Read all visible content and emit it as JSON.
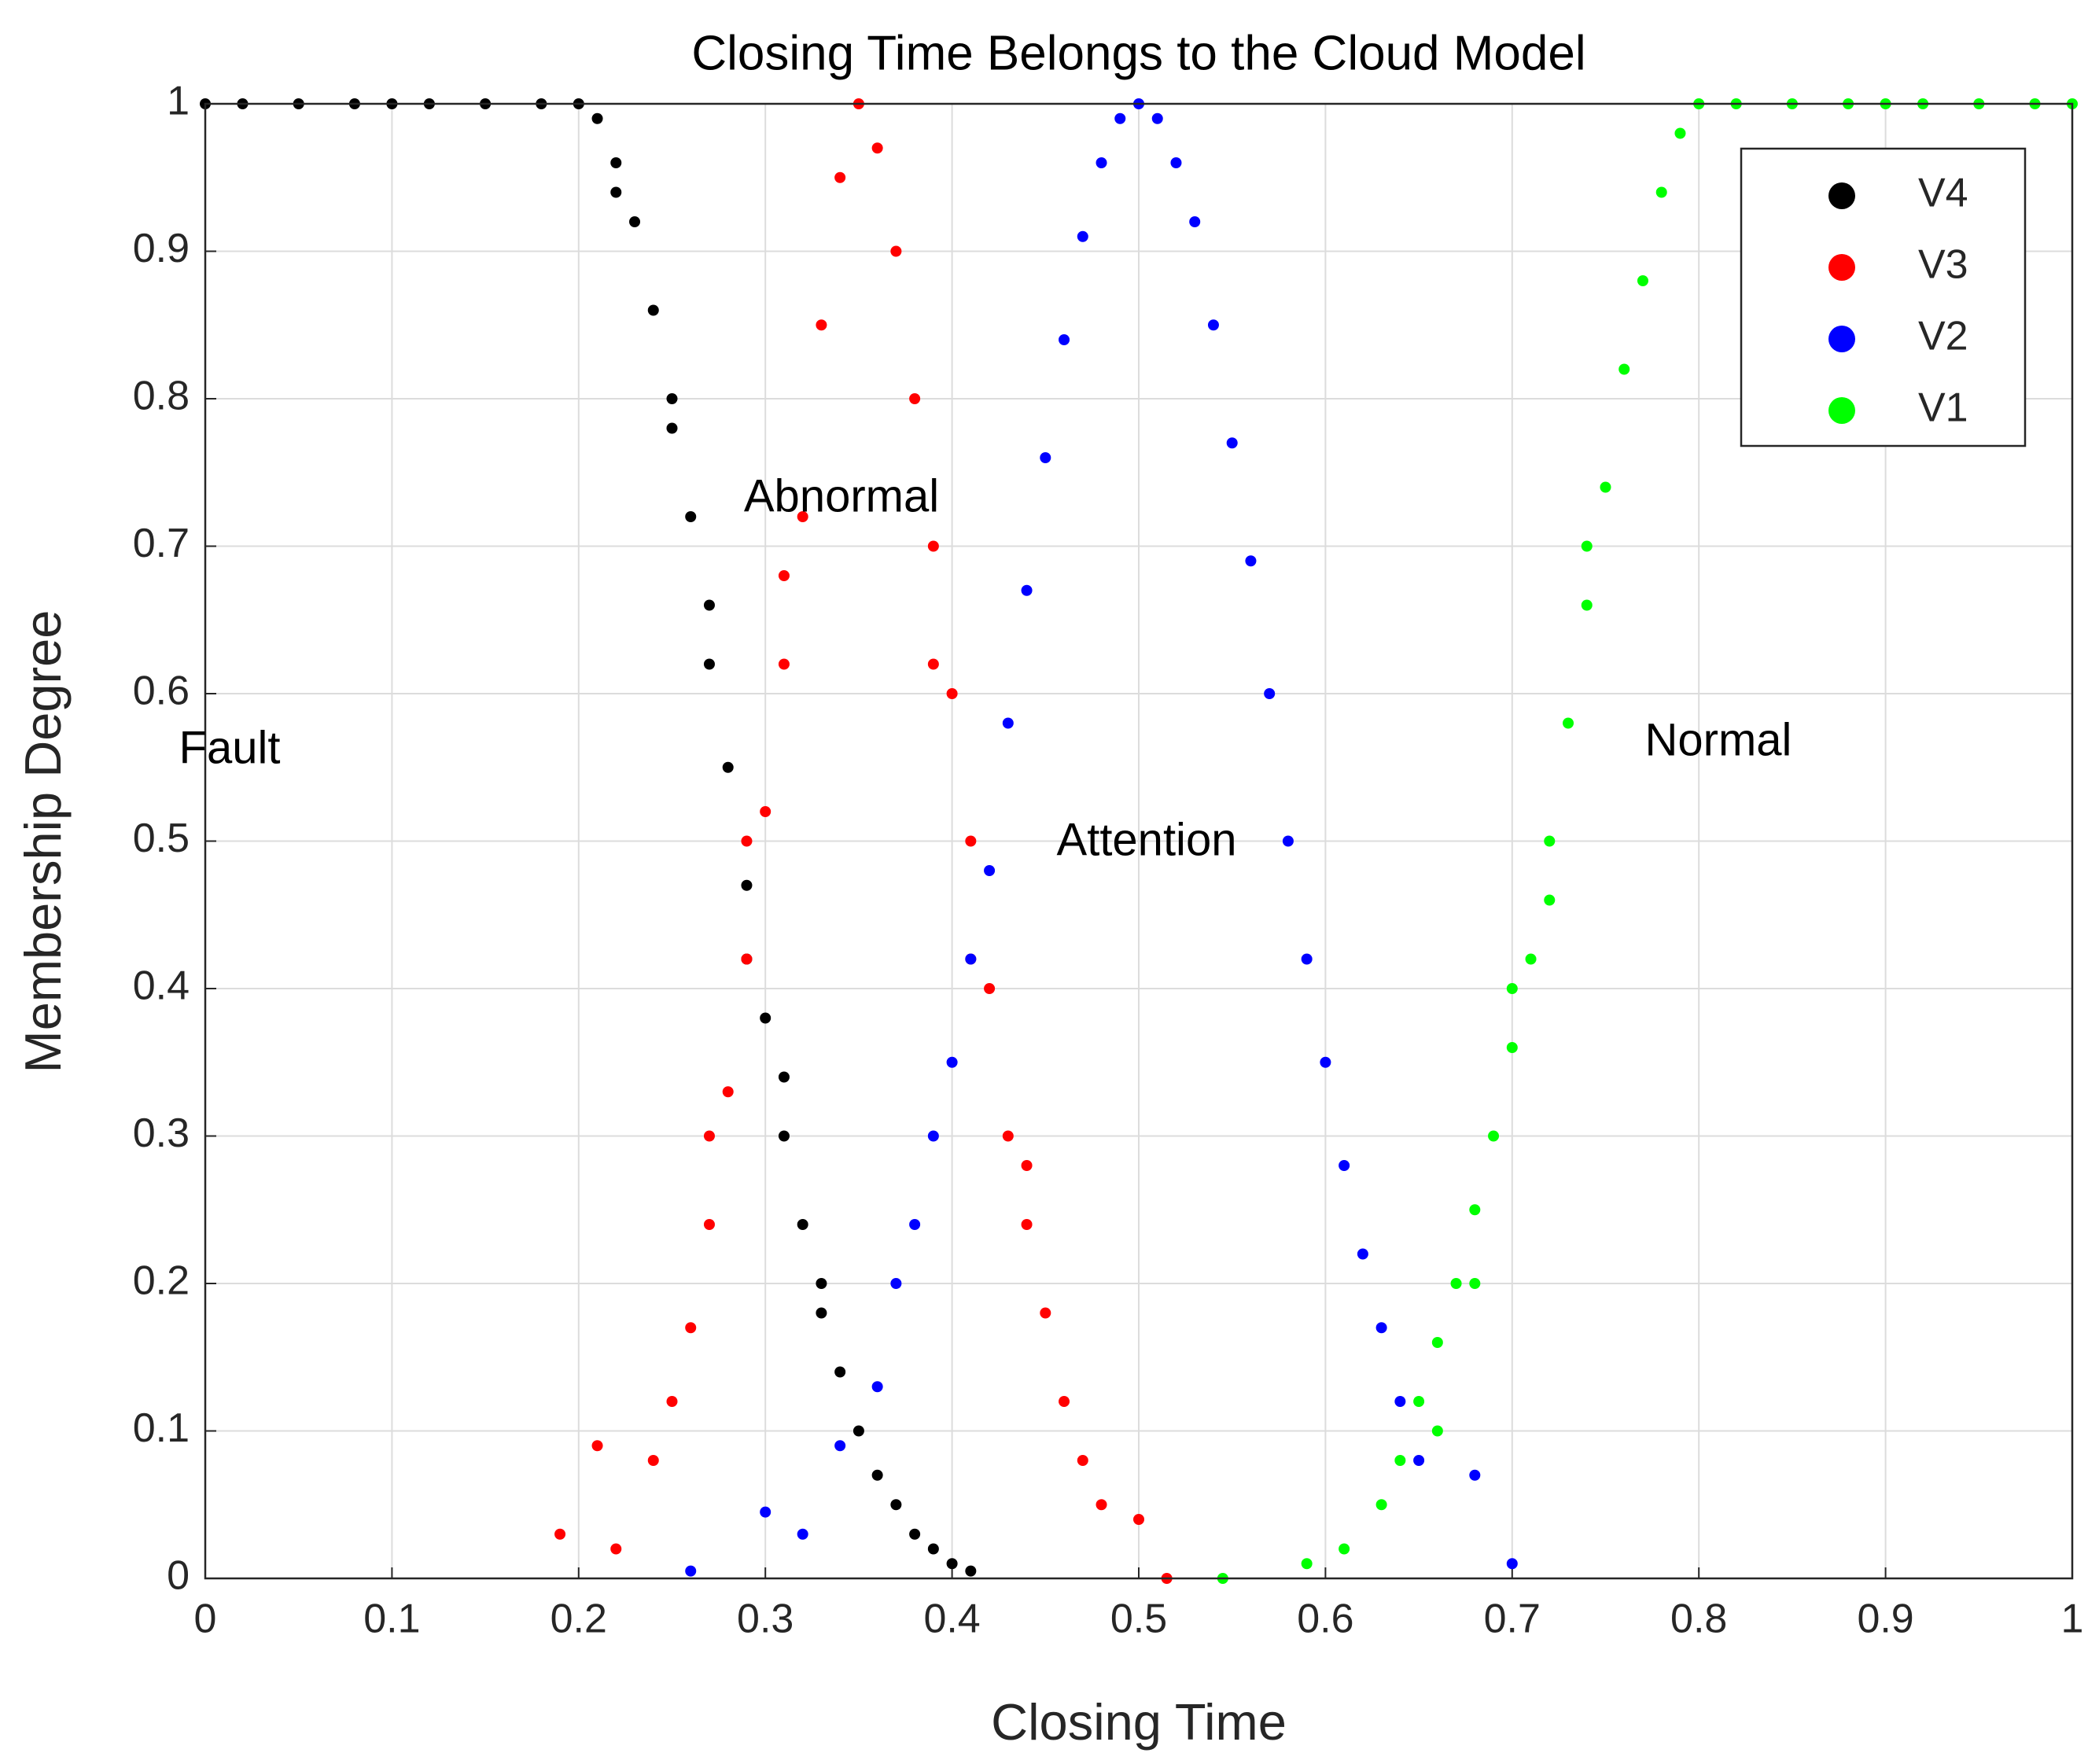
{
  "chart_data": {
    "type": "scatter",
    "title": "Closing Time Belongs to the Cloud Model",
    "xlabel": "Closing Time",
    "ylabel": "Membership Degree",
    "xlim": [
      0,
      1
    ],
    "ylim": [
      0,
      1
    ],
    "xticks": [
      0,
      0.1,
      0.2,
      0.3,
      0.4,
      0.5,
      0.6,
      0.7,
      0.8,
      0.9,
      1
    ],
    "yticks": [
      0,
      0.1,
      0.2,
      0.3,
      0.4,
      0.5,
      0.6,
      0.7,
      0.8,
      0.9,
      1
    ],
    "grid": true,
    "legend": "upper right",
    "annotations": [
      "Fault",
      "Abnormal",
      "Attention",
      "Normal"
    ],
    "series": [
      {
        "name": "V4",
        "color": "#000000",
        "x": [
          0,
          0.02,
          0.05,
          0.08,
          0.1,
          0.12,
          0.15,
          0.18,
          0.2,
          0.21,
          0.22,
          0.23,
          0.24,
          0.25,
          0.26,
          0.27,
          0.28,
          0.29,
          0.3,
          0.31,
          0.32,
          0.33,
          0.34,
          0.35,
          0.36,
          0.37,
          0.38,
          0.39,
          0.4,
          0.41,
          0.22,
          0.25,
          0.27,
          0.29,
          0.31,
          0.33
        ],
        "values": [
          1,
          1,
          1,
          1,
          1,
          1,
          1,
          1,
          1,
          0.99,
          0.96,
          0.92,
          0.86,
          0.8,
          0.72,
          0.66,
          0.55,
          0.47,
          0.38,
          0.3,
          0.24,
          0.18,
          0.14,
          0.1,
          0.07,
          0.05,
          0.03,
          0.02,
          0.01,
          0.005,
          0.94,
          0.78,
          0.62,
          0.42,
          0.34,
          0.2
        ]
      },
      {
        "name": "V3",
        "color": "#ff0000",
        "x": [
          0.19,
          0.21,
          0.22,
          0.24,
          0.25,
          0.26,
          0.27,
          0.28,
          0.29,
          0.3,
          0.31,
          0.32,
          0.33,
          0.34,
          0.35,
          0.36,
          0.37,
          0.38,
          0.39,
          0.4,
          0.41,
          0.42,
          0.43,
          0.44,
          0.45,
          0.46,
          0.47,
          0.48,
          0.5,
          0.515,
          0.27,
          0.29,
          0.31,
          0.39,
          0.41,
          0.44
        ],
        "values": [
          0.03,
          0.09,
          0.02,
          0.08,
          0.12,
          0.17,
          0.24,
          0.33,
          0.42,
          0.52,
          0.62,
          0.72,
          0.85,
          0.95,
          1,
          0.97,
          0.9,
          0.8,
          0.7,
          0.6,
          0.5,
          0.4,
          0.3,
          0.24,
          0.18,
          0.12,
          0.08,
          0.05,
          0.04,
          0,
          0.3,
          0.5,
          0.68,
          0.62,
          0.42,
          0.28
        ]
      },
      {
        "name": "V2",
        "color": "#0000ff",
        "x": [
          0.26,
          0.3,
          0.32,
          0.34,
          0.36,
          0.37,
          0.38,
          0.39,
          0.4,
          0.41,
          0.42,
          0.43,
          0.44,
          0.45,
          0.46,
          0.47,
          0.48,
          0.49,
          0.5,
          0.51,
          0.52,
          0.53,
          0.54,
          0.55,
          0.56,
          0.57,
          0.58,
          0.59,
          0.6,
          0.61,
          0.62,
          0.63,
          0.64,
          0.65,
          0.68,
          0.7
        ],
        "values": [
          0.005,
          0.045,
          0.03,
          0.09,
          0.13,
          0.2,
          0.24,
          0.3,
          0.35,
          0.42,
          0.48,
          0.58,
          0.67,
          0.76,
          0.84,
          0.91,
          0.96,
          0.99,
          1,
          0.99,
          0.96,
          0.92,
          0.85,
          0.77,
          0.69,
          0.6,
          0.5,
          0.42,
          0.35,
          0.28,
          0.22,
          0.17,
          0.12,
          0.08,
          0.07,
          0.01
        ]
      },
      {
        "name": "V1",
        "color": "#00ff00",
        "x": [
          0.545,
          0.59,
          0.61,
          0.63,
          0.64,
          0.65,
          0.66,
          0.67,
          0.68,
          0.69,
          0.7,
          0.71,
          0.72,
          0.73,
          0.74,
          0.75,
          0.76,
          0.77,
          0.78,
          0.79,
          0.8,
          0.82,
          0.85,
          0.88,
          0.9,
          0.92,
          0.95,
          0.98,
          1,
          0.7,
          0.72,
          0.74,
          0.68,
          0.66
        ],
        "values": [
          0,
          0.01,
          0.02,
          0.05,
          0.08,
          0.12,
          0.16,
          0.2,
          0.25,
          0.3,
          0.36,
          0.42,
          0.5,
          0.58,
          0.66,
          0.74,
          0.82,
          0.88,
          0.94,
          0.98,
          1,
          1,
          1,
          1,
          1,
          1,
          1,
          1,
          1,
          0.4,
          0.46,
          0.7,
          0.2,
          0.1
        ]
      }
    ]
  }
}
